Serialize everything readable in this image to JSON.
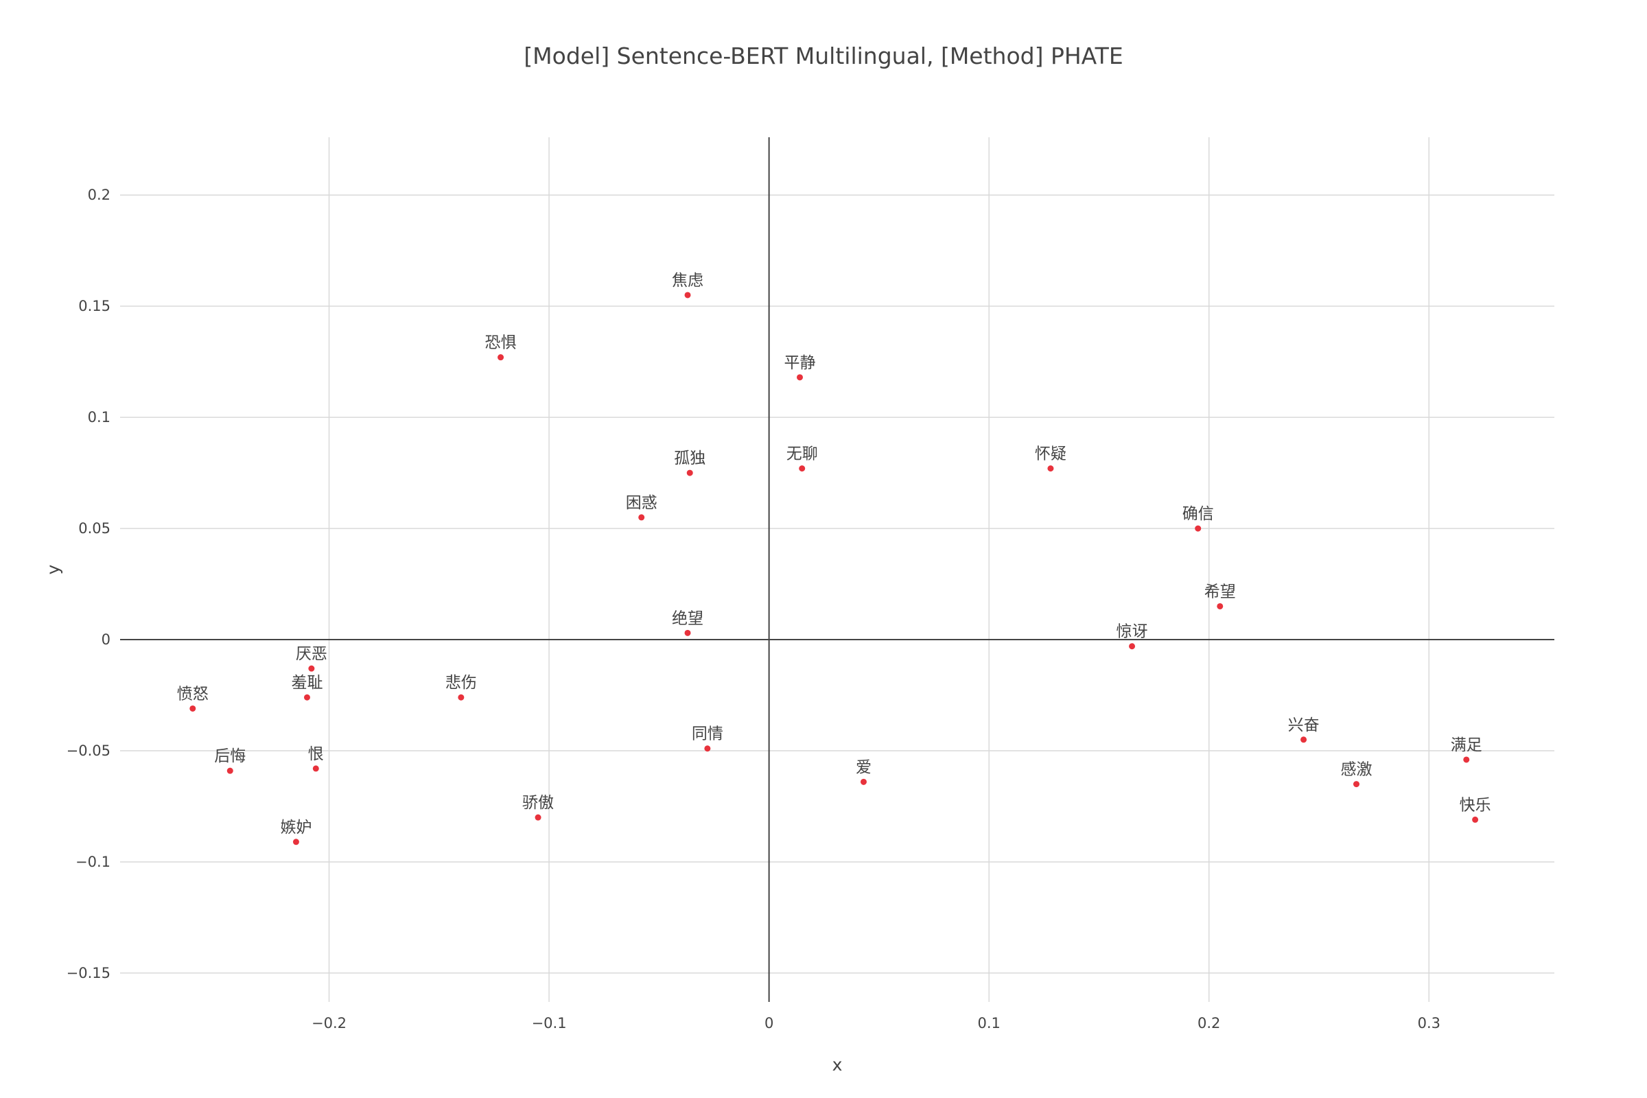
{
  "chart_data": {
    "type": "scatter",
    "title": "[Model] Sentence-BERT Multilingual, [Method] PHATE",
    "xlabel": "x",
    "ylabel": "y",
    "xlim": [
      -0.295,
      0.357
    ],
    "ylim": [
      -0.163,
      0.226
    ],
    "x_ticks": [
      -0.2,
      -0.1,
      0,
      0.1,
      0.2,
      0.3
    ],
    "x_tick_labels": [
      "−0.2",
      "−0.1",
      "0",
      "0.1",
      "0.2",
      "0.3"
    ],
    "y_ticks": [
      -0.15,
      -0.1,
      -0.05,
      0,
      0.05,
      0.1,
      0.15,
      0.2
    ],
    "y_tick_labels": [
      "−0.15",
      "−0.1",
      "−0.05",
      "0",
      "0.05",
      "0.1",
      "0.15",
      "0.2"
    ],
    "grid": true,
    "marker_color": "#e8323c",
    "points": [
      {
        "label": "焦虑",
        "x": -0.037,
        "y": 0.155
      },
      {
        "label": "恐惧",
        "x": -0.122,
        "y": 0.127
      },
      {
        "label": "平静",
        "x": 0.014,
        "y": 0.118
      },
      {
        "label": "孤独",
        "x": -0.036,
        "y": 0.075
      },
      {
        "label": "无聊",
        "x": 0.015,
        "y": 0.077
      },
      {
        "label": "怀疑",
        "x": 0.128,
        "y": 0.077
      },
      {
        "label": "困惑",
        "x": -0.058,
        "y": 0.055
      },
      {
        "label": "确信",
        "x": 0.195,
        "y": 0.05
      },
      {
        "label": "希望",
        "x": 0.205,
        "y": 0.015
      },
      {
        "label": "绝望",
        "x": -0.037,
        "y": 0.003
      },
      {
        "label": "惊讶",
        "x": 0.165,
        "y": -0.003
      },
      {
        "label": "厌恶",
        "x": -0.208,
        "y": -0.013
      },
      {
        "label": "羞耻",
        "x": -0.21,
        "y": -0.026
      },
      {
        "label": "悲伤",
        "x": -0.14,
        "y": -0.026
      },
      {
        "label": "愤怒",
        "x": -0.262,
        "y": -0.031
      },
      {
        "label": "同情",
        "x": -0.028,
        "y": -0.049
      },
      {
        "label": "后悔",
        "x": -0.245,
        "y": -0.059
      },
      {
        "label": "恨",
        "x": -0.206,
        "y": -0.058
      },
      {
        "label": "爱",
        "x": 0.043,
        "y": -0.064
      },
      {
        "label": "兴奋",
        "x": 0.243,
        "y": -0.045
      },
      {
        "label": "满足",
        "x": 0.317,
        "y": -0.054
      },
      {
        "label": "感激",
        "x": 0.267,
        "y": -0.065
      },
      {
        "label": "快乐",
        "x": 0.321,
        "y": -0.081
      },
      {
        "label": "骄傲",
        "x": -0.105,
        "y": -0.08
      },
      {
        "label": "嫉妒",
        "x": -0.215,
        "y": -0.091
      }
    ]
  }
}
